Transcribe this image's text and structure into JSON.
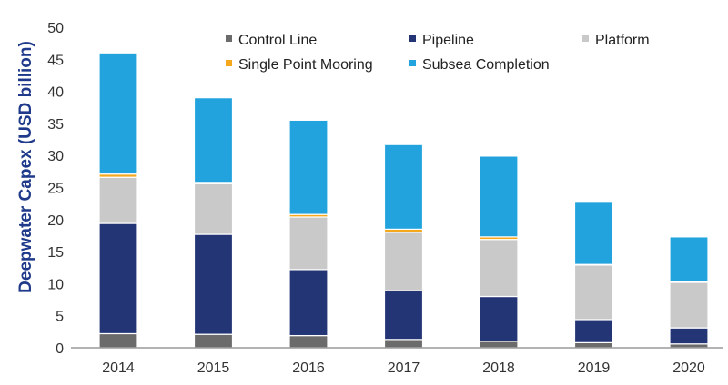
{
  "chart_data": {
    "type": "bar",
    "stacked": true,
    "categories": [
      "2014",
      "2015",
      "2016",
      "2017",
      "2018",
      "2019",
      "2020"
    ],
    "series": [
      {
        "name": "Control Line",
        "color": "#6b6b6b",
        "values": [
          2.2,
          2.1,
          1.9,
          1.3,
          1.0,
          0.8,
          0.6
        ]
      },
      {
        "name": "Pipeline",
        "color": "#243576",
        "values": [
          17.2,
          15.6,
          10.3,
          7.6,
          7.0,
          3.6,
          2.5
        ]
      },
      {
        "name": "Platform",
        "color": "#c9c9c9",
        "values": [
          7.2,
          7.9,
          8.2,
          9.1,
          8.9,
          8.5,
          7.1
        ]
      },
      {
        "name": "Single Point Mooring",
        "color": "#f5a81c",
        "values": [
          0.5,
          0.2,
          0.4,
          0.5,
          0.4,
          0.1,
          0.1
        ]
      },
      {
        "name": "Subsea Completion",
        "color": "#22a3dd",
        "values": [
          18.9,
          13.2,
          14.7,
          13.2,
          12.6,
          9.7,
          7.0
        ]
      }
    ],
    "title": "",
    "xlabel": "",
    "ylabel": "Deepwater Capex (USD billion)",
    "ylim": [
      0,
      50
    ],
    "yticks": [
      0,
      5,
      10,
      15,
      20,
      25,
      30,
      35,
      40,
      45,
      50
    ],
    "grid": false,
    "legend": {
      "position": "top-right",
      "order": [
        "Control Line",
        "Pipeline",
        "Platform",
        "Single Point Mooring",
        "Subsea Completion"
      ]
    }
  }
}
